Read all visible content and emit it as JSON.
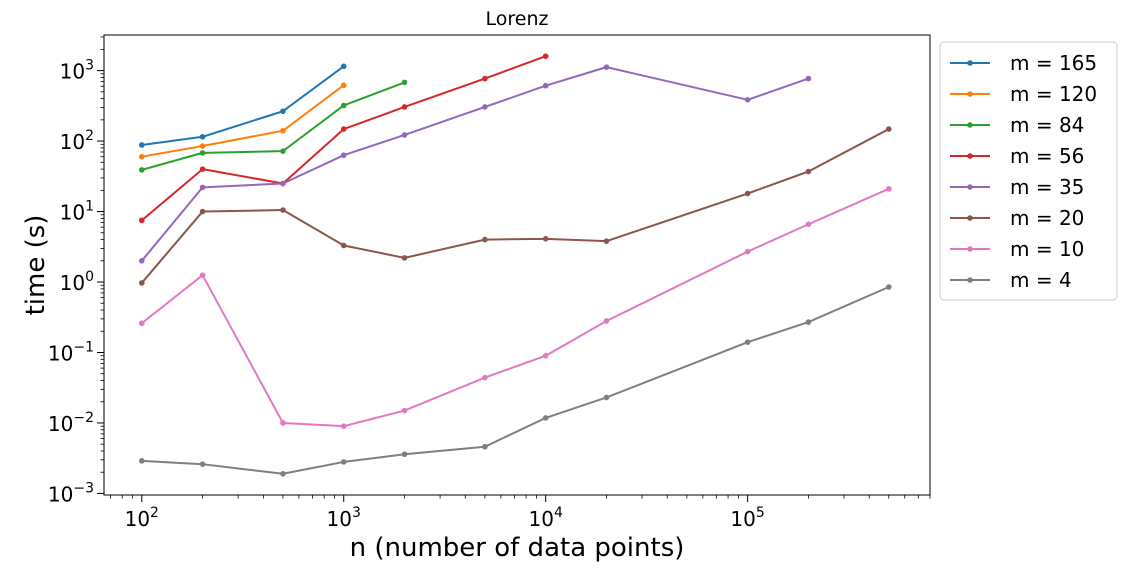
{
  "chart_data": {
    "type": "line",
    "title": "Lorenz",
    "xlabel": "n (number of data points)",
    "ylabel": "time (s)",
    "xscale": "log",
    "yscale": "log",
    "xlim": [
      65,
      800000
    ],
    "ylim": [
      0.00095,
      3200
    ],
    "grid": false,
    "legend_position": "outside-right",
    "x_ticks": [
      {
        "value": 100,
        "base": "10",
        "exp": "2"
      },
      {
        "value": 1000,
        "base": "10",
        "exp": "3"
      },
      {
        "value": 10000,
        "base": "10",
        "exp": "4"
      },
      {
        "value": 100000,
        "base": "10",
        "exp": "5"
      }
    ],
    "y_ticks": [
      {
        "value": 0.001,
        "base": "10",
        "exp": "−3"
      },
      {
        "value": 0.01,
        "base": "10",
        "exp": "−2"
      },
      {
        "value": 0.1,
        "base": "10",
        "exp": "−1"
      },
      {
        "value": 1,
        "base": "10",
        "exp": "0"
      },
      {
        "value": 10,
        "base": "10",
        "exp": "1"
      },
      {
        "value": 100,
        "base": "10",
        "exp": "2"
      },
      {
        "value": 1000,
        "base": "10",
        "exp": "3"
      }
    ],
    "series": [
      {
        "name": "m = 165",
        "color": "#1f77b4",
        "x": [
          100,
          200,
          500,
          1000
        ],
        "y": [
          88,
          115,
          265,
          1150
        ]
      },
      {
        "name": "m = 120",
        "color": "#ff7f0e",
        "x": [
          100,
          200,
          500,
          1000
        ],
        "y": [
          60,
          85,
          140,
          620
        ]
      },
      {
        "name": "m = 84",
        "color": "#2ca02c",
        "x": [
          100,
          200,
          500,
          1000,
          2000
        ],
        "y": [
          39,
          68,
          72,
          320,
          680
        ]
      },
      {
        "name": "m = 56",
        "color": "#d62728",
        "x": [
          100,
          200,
          500,
          1000,
          2000,
          5000,
          10000
        ],
        "y": [
          7.5,
          40,
          25,
          148,
          305,
          770,
          1600
        ]
      },
      {
        "name": "m = 35",
        "color": "#9467bd",
        "x": [
          100,
          200,
          500,
          1000,
          2000,
          5000,
          10000,
          20000,
          100000,
          200000
        ],
        "y": [
          2.0,
          22,
          25,
          63,
          122,
          305,
          610,
          1120,
          385,
          770
        ]
      },
      {
        "name": "m = 20",
        "color": "#8c564b",
        "x": [
          100,
          200,
          500,
          1000,
          2000,
          5000,
          10000,
          20000,
          100000,
          200000,
          500000
        ],
        "y": [
          0.97,
          10,
          10.5,
          3.3,
          2.2,
          4.0,
          4.1,
          3.8,
          18,
          37,
          148
        ]
      },
      {
        "name": "m = 10",
        "color": "#e377c2",
        "x": [
          100,
          200,
          500,
          1000,
          2000,
          5000,
          10000,
          20000,
          100000,
          200000,
          500000
        ],
        "y": [
          0.26,
          1.25,
          0.01,
          0.009,
          0.015,
          0.044,
          0.09,
          0.28,
          2.7,
          6.6,
          21
        ]
      },
      {
        "name": "m = 4",
        "color": "#7f7f7f",
        "x": [
          100,
          200,
          500,
          1000,
          2000,
          5000,
          10000,
          20000,
          100000,
          200000,
          500000
        ],
        "y": [
          0.0029,
          0.0026,
          0.0019,
          0.0028,
          0.0036,
          0.0046,
          0.0118,
          0.023,
          0.14,
          0.27,
          0.85
        ]
      }
    ]
  }
}
